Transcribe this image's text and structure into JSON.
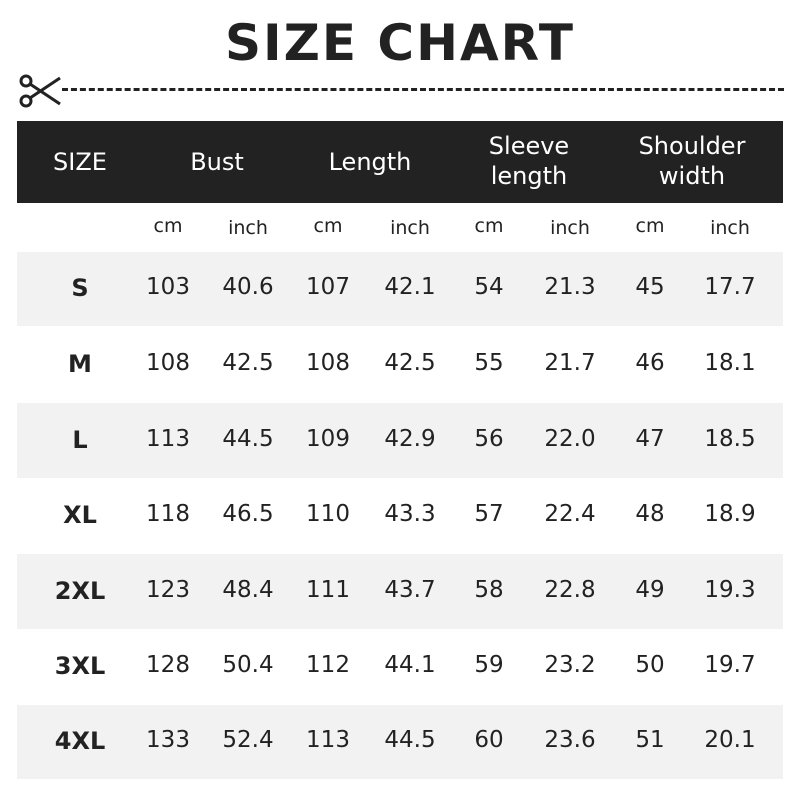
{
  "title": "SIZE CHART",
  "icons": {
    "cut": "scissors-icon"
  },
  "colors": {
    "header_bg": "#222222",
    "stripe": "#f2f2f2"
  },
  "header": {
    "size": "SIZE",
    "groups": [
      {
        "line1": "Bust",
        "line2": ""
      },
      {
        "line1": "Length",
        "line2": ""
      },
      {
        "line1": "Sleeve",
        "line2": "length"
      },
      {
        "line1": "Shoulder",
        "line2": "width"
      }
    ]
  },
  "units": [
    "cm",
    "inch",
    "cm",
    "inch",
    "cm",
    "inch",
    "cm",
    "inch"
  ],
  "rows": [
    {
      "size": "S",
      "values": [
        "103",
        "40.6",
        "107",
        "42.1",
        "54",
        "21.3",
        "45",
        "17.7"
      ]
    },
    {
      "size": "M",
      "values": [
        "108",
        "42.5",
        "108",
        "42.5",
        "55",
        "21.7",
        "46",
        "18.1"
      ]
    },
    {
      "size": "L",
      "values": [
        "113",
        "44.5",
        "109",
        "42.9",
        "56",
        "22.0",
        "47",
        "18.5"
      ]
    },
    {
      "size": "XL",
      "values": [
        "118",
        "46.5",
        "110",
        "43.3",
        "57",
        "22.4",
        "48",
        "18.9"
      ]
    },
    {
      "size": "2XL",
      "values": [
        "123",
        "48.4",
        "111",
        "43.7",
        "58",
        "22.8",
        "49",
        "19.3"
      ]
    },
    {
      "size": "3XL",
      "values": [
        "128",
        "50.4",
        "112",
        "44.1",
        "59",
        "23.2",
        "50",
        "19.7"
      ]
    },
    {
      "size": "4XL",
      "values": [
        "133",
        "52.4",
        "113",
        "44.5",
        "60",
        "23.6",
        "51",
        "20.1"
      ]
    }
  ]
}
